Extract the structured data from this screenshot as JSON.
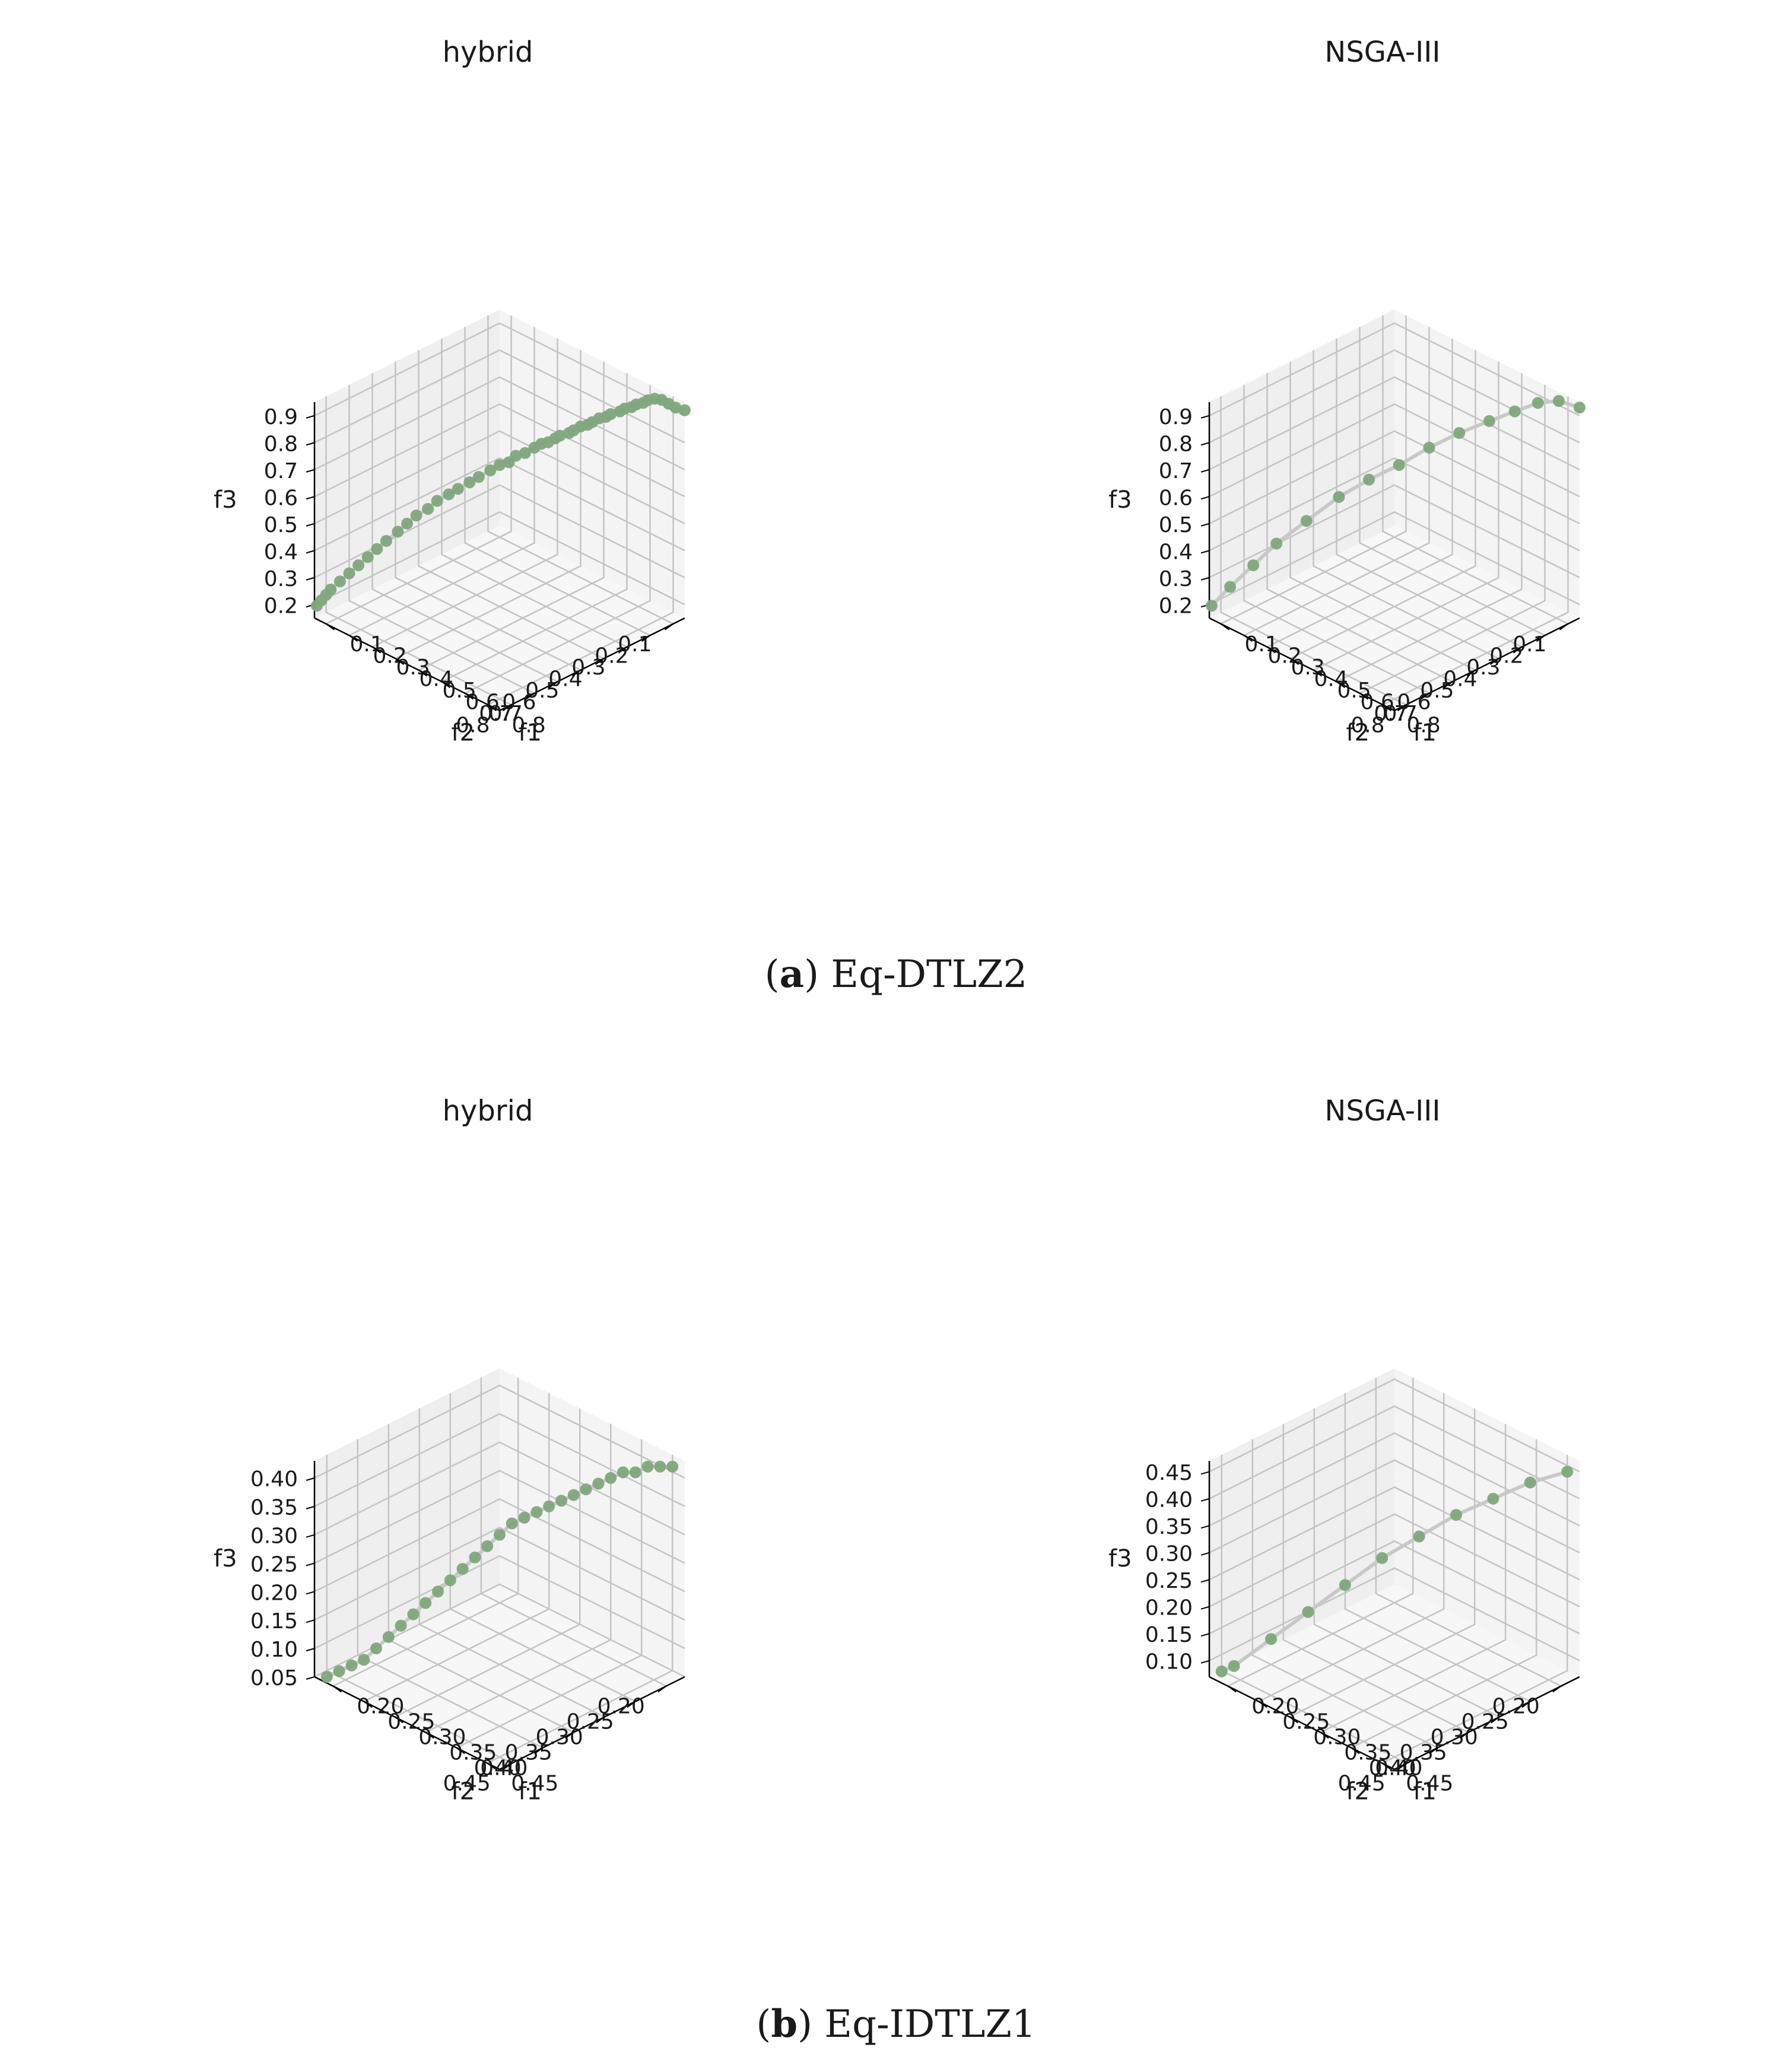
{
  "captions": [
    {
      "letter": "a",
      "text": "Eq-DTLZ2"
    },
    {
      "letter": "b",
      "text": "Eq-IDTLZ1"
    }
  ],
  "colors": {
    "points": "#7fa77c",
    "curve": "#c8c8c8",
    "grid": "#c4c4c4",
    "pane_back": "#f4f4f4",
    "pane_side": "#efefef",
    "axis": "#000000"
  },
  "chart_data": [
    {
      "type": "scatter3d",
      "title": "hybrid",
      "subplot": "(a) Eq-DTLZ2",
      "xlabel": "f1",
      "ylabel": "f2",
      "zlabel": "f3",
      "xticks": [
        "0.1",
        "0.2",
        "0.3",
        "0.4",
        "0.5",
        "0.6",
        "0.7",
        "0.8"
      ],
      "yticks": [
        "0.1",
        "0.2",
        "0.3",
        "0.4",
        "0.5",
        "0.6",
        "0.7",
        "0.8"
      ],
      "zticks": [
        "0.2",
        "0.3",
        "0.4",
        "0.5",
        "0.6",
        "0.7",
        "0.8",
        "0.9"
      ],
      "xlim": [
        0.05,
        0.85
      ],
      "ylim": [
        0.05,
        0.85
      ],
      "zlim": [
        0.15,
        0.95
      ],
      "points": [
        [
          0.85,
          0.05,
          0.92
        ],
        [
          0.83,
          0.07,
          0.93
        ],
        [
          0.81,
          0.08,
          0.94
        ],
        [
          0.79,
          0.09,
          0.95
        ],
        [
          0.77,
          0.1,
          0.95
        ],
        [
          0.75,
          0.11,
          0.94
        ],
        [
          0.74,
          0.12,
          0.93
        ],
        [
          0.72,
          0.13,
          0.92
        ],
        [
          0.71,
          0.14,
          0.91
        ],
        [
          0.69,
          0.15,
          0.9
        ],
        [
          0.68,
          0.16,
          0.89
        ],
        [
          0.66,
          0.18,
          0.88
        ],
        [
          0.65,
          0.19,
          0.87
        ],
        [
          0.63,
          0.2,
          0.86
        ],
        [
          0.62,
          0.22,
          0.85
        ],
        [
          0.61,
          0.23,
          0.84
        ],
        [
          0.59,
          0.24,
          0.83
        ],
        [
          0.58,
          0.26,
          0.82
        ],
        [
          0.57,
          0.27,
          0.81
        ],
        [
          0.55,
          0.29,
          0.8
        ],
        [
          0.54,
          0.3,
          0.79
        ],
        [
          0.53,
          0.32,
          0.78
        ],
        [
          0.51,
          0.33,
          0.77
        ],
        [
          0.5,
          0.35,
          0.76
        ],
        [
          0.48,
          0.37,
          0.74
        ],
        [
          0.46,
          0.39,
          0.73
        ],
        [
          0.45,
          0.41,
          0.71
        ],
        [
          0.43,
          0.43,
          0.7
        ],
        [
          0.41,
          0.45,
          0.68
        ],
        [
          0.39,
          0.48,
          0.66
        ],
        [
          0.37,
          0.5,
          0.64
        ],
        [
          0.35,
          0.53,
          0.62
        ],
        [
          0.33,
          0.55,
          0.6
        ],
        [
          0.31,
          0.58,
          0.58
        ],
        [
          0.29,
          0.6,
          0.55
        ],
        [
          0.27,
          0.63,
          0.53
        ],
        [
          0.25,
          0.65,
          0.5
        ],
        [
          0.23,
          0.67,
          0.47
        ],
        [
          0.21,
          0.7,
          0.44
        ],
        [
          0.19,
          0.72,
          0.41
        ],
        [
          0.17,
          0.74,
          0.38
        ],
        [
          0.15,
          0.76,
          0.35
        ],
        [
          0.13,
          0.78,
          0.32
        ],
        [
          0.11,
          0.8,
          0.29
        ],
        [
          0.09,
          0.82,
          0.26
        ],
        [
          0.08,
          0.83,
          0.24
        ],
        [
          0.07,
          0.84,
          0.22
        ],
        [
          0.06,
          0.85,
          0.2
        ]
      ],
      "axis_side": "left",
      "panel": "a-left"
    },
    {
      "type": "scatter3d",
      "title": "NSGA-III",
      "subplot": "(a) Eq-DTLZ2",
      "xlabel": "f1",
      "ylabel": "f2",
      "zlabel": "f3",
      "xticks": [
        "0.1",
        "0.2",
        "0.3",
        "0.4",
        "0.5",
        "0.6",
        "0.7",
        "0.8"
      ],
      "yticks": [
        "0.1",
        "0.2",
        "0.3",
        "0.4",
        "0.5",
        "0.6",
        "0.7",
        "0.8"
      ],
      "zticks": [
        "0.2",
        "0.3",
        "0.4",
        "0.5",
        "0.6",
        "0.7",
        "0.8",
        "0.9"
      ],
      "xlim": [
        0.05,
        0.85
      ],
      "ylim": [
        0.05,
        0.85
      ],
      "zlim": [
        0.15,
        0.95
      ],
      "points": [
        [
          0.85,
          0.05,
          0.93
        ],
        [
          0.8,
          0.09,
          0.95
        ],
        [
          0.74,
          0.12,
          0.93
        ],
        [
          0.68,
          0.16,
          0.89
        ],
        [
          0.62,
          0.21,
          0.85
        ],
        [
          0.56,
          0.28,
          0.81
        ],
        [
          0.5,
          0.35,
          0.76
        ],
        [
          0.44,
          0.42,
          0.7
        ],
        [
          0.38,
          0.49,
          0.65
        ],
        [
          0.32,
          0.56,
          0.59
        ],
        [
          0.26,
          0.64,
          0.51
        ],
        [
          0.2,
          0.71,
          0.43
        ],
        [
          0.15,
          0.76,
          0.35
        ],
        [
          0.1,
          0.81,
          0.27
        ],
        [
          0.06,
          0.85,
          0.2
        ]
      ],
      "axis_side": "left",
      "panel": "a-right"
    },
    {
      "type": "scatter3d",
      "title": "hybrid",
      "subplot": "(b) Eq-IDTLZ1",
      "xlabel": "f1",
      "ylabel": "f2",
      "zlabel": "f3",
      "xticks": [
        "0.20",
        "0.25",
        "0.30",
        "0.35",
        "0.40",
        "0.45"
      ],
      "yticks": [
        "0.20",
        "0.25",
        "0.30",
        "0.35",
        "0.40",
        "0.45"
      ],
      "zticks": [
        "0.05",
        "0.10",
        "0.15",
        "0.20",
        "0.25",
        "0.30",
        "0.35",
        "0.40"
      ],
      "xlim": [
        0.17,
        0.47
      ],
      "ylim": [
        0.17,
        0.47
      ],
      "zlim": [
        0.05,
        0.43
      ],
      "points": [
        [
          0.46,
          0.18,
          0.42
        ],
        [
          0.45,
          0.19,
          0.42
        ],
        [
          0.44,
          0.2,
          0.42
        ],
        [
          0.43,
          0.21,
          0.41
        ],
        [
          0.42,
          0.22,
          0.41
        ],
        [
          0.41,
          0.23,
          0.4
        ],
        [
          0.4,
          0.24,
          0.39
        ],
        [
          0.39,
          0.25,
          0.38
        ],
        [
          0.38,
          0.26,
          0.37
        ],
        [
          0.37,
          0.27,
          0.36
        ],
        [
          0.36,
          0.28,
          0.35
        ],
        [
          0.35,
          0.29,
          0.34
        ],
        [
          0.34,
          0.3,
          0.33
        ],
        [
          0.33,
          0.31,
          0.32
        ],
        [
          0.32,
          0.32,
          0.3
        ],
        [
          0.31,
          0.33,
          0.28
        ],
        [
          0.3,
          0.34,
          0.26
        ],
        [
          0.29,
          0.35,
          0.24
        ],
        [
          0.28,
          0.36,
          0.22
        ],
        [
          0.27,
          0.37,
          0.2
        ],
        [
          0.26,
          0.38,
          0.18
        ],
        [
          0.25,
          0.39,
          0.16
        ],
        [
          0.24,
          0.4,
          0.14
        ],
        [
          0.23,
          0.41,
          0.12
        ],
        [
          0.22,
          0.42,
          0.1
        ],
        [
          0.21,
          0.43,
          0.08
        ],
        [
          0.2,
          0.44,
          0.07
        ],
        [
          0.19,
          0.45,
          0.06
        ],
        [
          0.18,
          0.46,
          0.05
        ]
      ],
      "axis_side": "left",
      "panel": "b-left"
    },
    {
      "type": "scatter3d",
      "title": "NSGA-III",
      "subplot": "(b) Eq-IDTLZ1",
      "xlabel": "f1",
      "ylabel": "f2",
      "zlabel": "f3",
      "xticks": [
        "0.20",
        "0.25",
        "0.30",
        "0.35",
        "0.40",
        "0.45"
      ],
      "yticks": [
        "0.20",
        "0.25",
        "0.30",
        "0.35",
        "0.40",
        "0.45"
      ],
      "zticks": [
        "0.10",
        "0.15",
        "0.20",
        "0.25",
        "0.30",
        "0.35",
        "0.40",
        "0.45"
      ],
      "xlim": [
        0.17,
        0.47
      ],
      "ylim": [
        0.17,
        0.47
      ],
      "zlim": [
        0.07,
        0.47
      ],
      "points": [
        [
          0.46,
          0.18,
          0.45
        ],
        [
          0.43,
          0.21,
          0.43
        ],
        [
          0.4,
          0.24,
          0.4
        ],
        [
          0.37,
          0.27,
          0.37
        ],
        [
          0.34,
          0.3,
          0.33
        ],
        [
          0.31,
          0.33,
          0.29
        ],
        [
          0.28,
          0.36,
          0.24
        ],
        [
          0.25,
          0.39,
          0.19
        ],
        [
          0.22,
          0.42,
          0.14
        ],
        [
          0.19,
          0.45,
          0.09
        ],
        [
          0.18,
          0.46,
          0.08
        ]
      ],
      "axis_side": "left",
      "panel": "b-right"
    }
  ]
}
